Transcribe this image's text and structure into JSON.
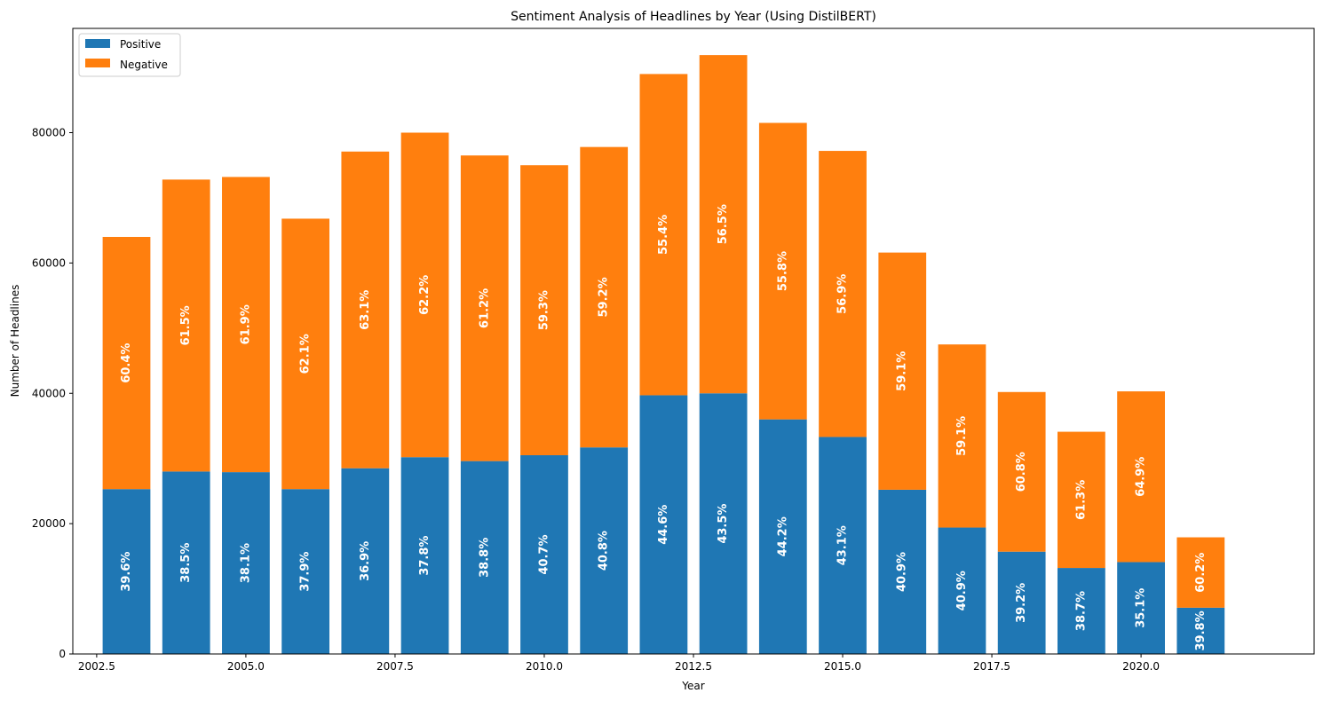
{
  "chart_data": {
    "type": "bar",
    "stacked": true,
    "title": "Sentiment Analysis of Headlines by Year (Using DistilBERT)",
    "xlabel": "Year",
    "ylabel": "Number of Headlines",
    "xlim": [
      2002.1,
      2022.9
    ],
    "ylim": [
      0,
      96000
    ],
    "xticks": [
      "2002.5",
      "2005.0",
      "2007.5",
      "2010.0",
      "2012.5",
      "2015.0",
      "2017.5",
      "2020.0"
    ],
    "yticks": [
      "0",
      "20000",
      "40000",
      "60000",
      "80000"
    ],
    "legend_position": "top-left",
    "grid": false,
    "x": [
      2003,
      2004,
      2005,
      2006,
      2007,
      2008,
      2009,
      2010,
      2011,
      2012,
      2013,
      2014,
      2015,
      2016,
      2017,
      2018,
      2019,
      2020,
      2021
    ],
    "series": [
      {
        "name": "Positive",
        "color": "#1f77b4",
        "values": [
          25300,
          28000,
          27900,
          25300,
          28500,
          30200,
          29600,
          30500,
          31700,
          39700,
          40000,
          36000,
          33300,
          25200,
          19400,
          15700,
          13200,
          14100,
          7100
        ],
        "labels": [
          "39.6%",
          "38.5%",
          "38.1%",
          "37.9%",
          "36.9%",
          "37.8%",
          "38.8%",
          "40.7%",
          "40.8%",
          "44.6%",
          "43.5%",
          "44.2%",
          "43.1%",
          "40.9%",
          "40.9%",
          "39.2%",
          "38.7%",
          "35.1%",
          "39.8%"
        ]
      },
      {
        "name": "Negative",
        "color": "#ff7f0e",
        "values": [
          38700,
          44800,
          45300,
          41500,
          48600,
          49800,
          46900,
          44500,
          46100,
          49300,
          51900,
          45500,
          43900,
          36400,
          28100,
          24500,
          20900,
          26200,
          10800
        ],
        "labels": [
          "60.4%",
          "61.5%",
          "61.9%",
          "62.1%",
          "63.1%",
          "62.2%",
          "61.2%",
          "59.3%",
          "59.2%",
          "55.4%",
          "56.5%",
          "55.8%",
          "56.9%",
          "59.1%",
          "59.1%",
          "60.8%",
          "61.3%",
          "64.9%",
          "60.2%"
        ]
      }
    ]
  }
}
